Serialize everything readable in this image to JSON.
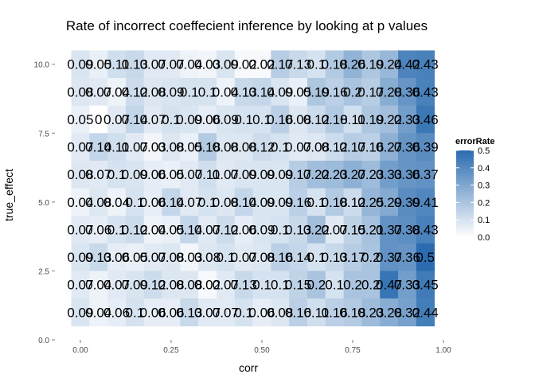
{
  "chart_data": {
    "type": "heatmap",
    "title": "Rate of incorrect coeffecient inference by looking at p values",
    "xlabel": "corr",
    "ylabel": "true_effect",
    "xlim": [
      -0.07,
      1.0
    ],
    "ylim": [
      0.0,
      10.8
    ],
    "x_ticks": [
      0.0,
      0.25,
      0.5,
      0.75,
      1.0
    ],
    "x_tick_labels": [
      "0.00",
      "0.25",
      "0.50",
      "0.75",
      "1.00"
    ],
    "y_ticks": [
      0.0,
      2.5,
      5.0,
      7.5,
      10.0
    ],
    "y_tick_labels": [
      "0.0",
      "2.5",
      "5.0",
      "7.5",
      "10.0"
    ],
    "x": [
      0.0,
      0.05,
      0.1,
      0.15,
      0.2,
      0.25,
      0.3,
      0.35,
      0.4,
      0.45,
      0.5,
      0.55,
      0.6,
      0.65,
      0.7,
      0.75,
      0.8,
      0.85,
      0.9,
      0.95
    ],
    "y": [
      10,
      9,
      8,
      7,
      6,
      5,
      4,
      3,
      2,
      1
    ],
    "values": [
      [
        0.09,
        0.05,
        0.11,
        0.13,
        0.07,
        0.07,
        0.04,
        0.03,
        0.09,
        0.02,
        0.02,
        0.17,
        0.13,
        0.1,
        0.18,
        0.26,
        0.19,
        0.24,
        0.42,
        0.43
      ],
      [
        0.08,
        0.07,
        0.04,
        0.12,
        0.08,
        0.09,
        0.1,
        0.1,
        0.04,
        0.13,
        0.14,
        0.09,
        0.05,
        0.19,
        0.16,
        0.2,
        0.17,
        0.28,
        0.36,
        0.43
      ],
      [
        0.05,
        0.0,
        0.07,
        0.14,
        0.07,
        0.1,
        0.09,
        0.06,
        0.09,
        0.1,
        0.1,
        0.16,
        0.08,
        0.12,
        0.18,
        0.11,
        0.19,
        0.22,
        0.33,
        0.46
      ],
      [
        0.07,
        0.14,
        0.11,
        0.07,
        0.03,
        0.08,
        0.05,
        0.18,
        0.08,
        0.08,
        0.12,
        0.1,
        0.07,
        0.08,
        0.12,
        0.17,
        0.16,
        0.27,
        0.36,
        0.39
      ],
      [
        0.08,
        0.07,
        0.1,
        0.09,
        0.06,
        0.05,
        0.07,
        0.11,
        0.07,
        0.09,
        0.09,
        0.09,
        0.17,
        0.22,
        0.23,
        0.27,
        0.23,
        0.33,
        0.36,
        0.37
      ],
      [
        0.04,
        0.08,
        0.04,
        0.1,
        0.06,
        0.14,
        0.07,
        0.1,
        0.08,
        0.14,
        0.09,
        0.09,
        0.16,
        0.1,
        0.18,
        0.12,
        0.25,
        0.29,
        0.39,
        0.41
      ],
      [
        0.07,
        0.06,
        0.1,
        0.12,
        0.04,
        0.05,
        0.14,
        0.07,
        0.12,
        0.06,
        0.09,
        0.1,
        0.13,
        0.22,
        0.07,
        0.15,
        0.21,
        0.37,
        0.38,
        0.43
      ],
      [
        0.09,
        0.13,
        0.06,
        0.05,
        0.07,
        0.08,
        0.03,
        0.08,
        0.1,
        0.07,
        0.08,
        0.16,
        0.14,
        0.1,
        0.13,
        0.17,
        0.2,
        0.37,
        0.36,
        0.5
      ],
      [
        0.07,
        0.04,
        0.07,
        0.09,
        0.12,
        0.08,
        0.08,
        0.02,
        0.07,
        0.13,
        0.1,
        0.1,
        0.15,
        0.2,
        0.1,
        0.2,
        0.2,
        0.47,
        0.33,
        0.45
      ],
      [
        0.09,
        0.04,
        0.06,
        0.1,
        0.06,
        0.06,
        0.13,
        0.07,
        0.07,
        0.1,
        0.06,
        0.08,
        0.16,
        0.11,
        0.16,
        0.18,
        0.23,
        0.28,
        0.32,
        0.44
      ]
    ],
    "cell_labels": [
      "0.09",
      "0.05",
      "0.11",
      "0.13",
      "0.07",
      "0.07",
      "0.04",
      "0.03",
      "0.09",
      "0.02",
      "0.02",
      "0.17",
      "0.13",
      "0.1",
      "0.18",
      "0.26",
      "0.19",
      "0.24",
      "0.42",
      "0.43",
      "0.08",
      "0.07",
      "0.04",
      "0.12",
      "0.08",
      "0.09",
      "0.1",
      "0.1",
      "0.04",
      "0.13",
      "0.14",
      "0.09",
      "0.05",
      "0.19",
      "0.16",
      "0.2",
      "0.17",
      "0.28",
      "0.36",
      "0.43",
      "0.05",
      "0",
      "0.07",
      "0.14",
      "0.07",
      "0.1",
      "0.09",
      "0.06",
      "0.09",
      "0.1",
      "0.1",
      "0.16",
      "0.08",
      "0.12",
      "0.18",
      "0.11",
      "0.19",
      "0.22",
      "0.33",
      "0.46",
      "0.07",
      "0.14",
      "0.11",
      "0.07",
      "0.03",
      "0.08",
      "0.05",
      "0.18",
      "0.08",
      "0.08",
      "0.12",
      "0.1",
      "0.07",
      "0.08",
      "0.12",
      "0.17",
      "0.16",
      "0.27",
      "0.36",
      "0.39",
      "0.08",
      "0.07",
      "0.1",
      "0.09",
      "0.06",
      "0.05",
      "0.07",
      "0.11",
      "0.07",
      "0.09",
      "0.09",
      "0.09",
      "0.17",
      "0.22",
      "0.23",
      "0.27",
      "0.23",
      "0.33",
      "0.36",
      "0.37",
      "0.04",
      "0.08",
      "0.04",
      "0.1",
      "0.06",
      "0.14",
      "0.07",
      "0.1",
      "0.08",
      "0.14",
      "0.09",
      "0.09",
      "0.16",
      "0.1",
      "0.18",
      "0.12",
      "0.25",
      "0.29",
      "0.39",
      "0.41",
      "0.07",
      "0.06",
      "0.1",
      "0.12",
      "0.04",
      "0.05",
      "0.14",
      "0.07",
      "0.12",
      "0.06",
      "0.09",
      "0.1",
      "0.13",
      "0.22",
      "0.07",
      "0.15",
      "0.21",
      "0.37",
      "0.38",
      "0.43",
      "0.09",
      "0.13",
      "0.06",
      "0.05",
      "0.07",
      "0.08",
      "0.03",
      "0.08",
      "0.1",
      "0.07",
      "0.08",
      "0.16",
      "0.14",
      "0.1",
      "0.13",
      "0.17",
      "0.2",
      "0.37",
      "0.36",
      "0.5",
      "0.07",
      "0.04",
      "0.07",
      "0.09",
      "0.12",
      "0.08",
      "0.08",
      "0.02",
      "0.07",
      "0.13",
      "0.1",
      "0.1",
      "0.15",
      "0.2",
      "0.1",
      "0.2",
      "0.2",
      "0.47",
      "0.33",
      "0.45",
      "0.09",
      "0.04",
      "0.06",
      "0.1",
      "0.06",
      "0.06",
      "0.13",
      "0.07",
      "0.07",
      "0.1",
      "0.06",
      "0.08",
      "0.16",
      "0.11",
      "0.16",
      "0.18",
      "0.23",
      "0.28",
      "0.32",
      "0.44"
    ],
    "color_scale": {
      "name": "errorRate",
      "low": "#ffffff",
      "high": "#2b6cb0",
      "range": [
        0,
        0.5
      ],
      "breaks": [
        0.0,
        0.1,
        0.2,
        0.3,
        0.4,
        0.5
      ],
      "break_labels": [
        "0.0",
        "0.1",
        "0.2",
        "0.3",
        "0.4",
        "0.5"
      ]
    },
    "legend_position": "right",
    "grid": false
  }
}
